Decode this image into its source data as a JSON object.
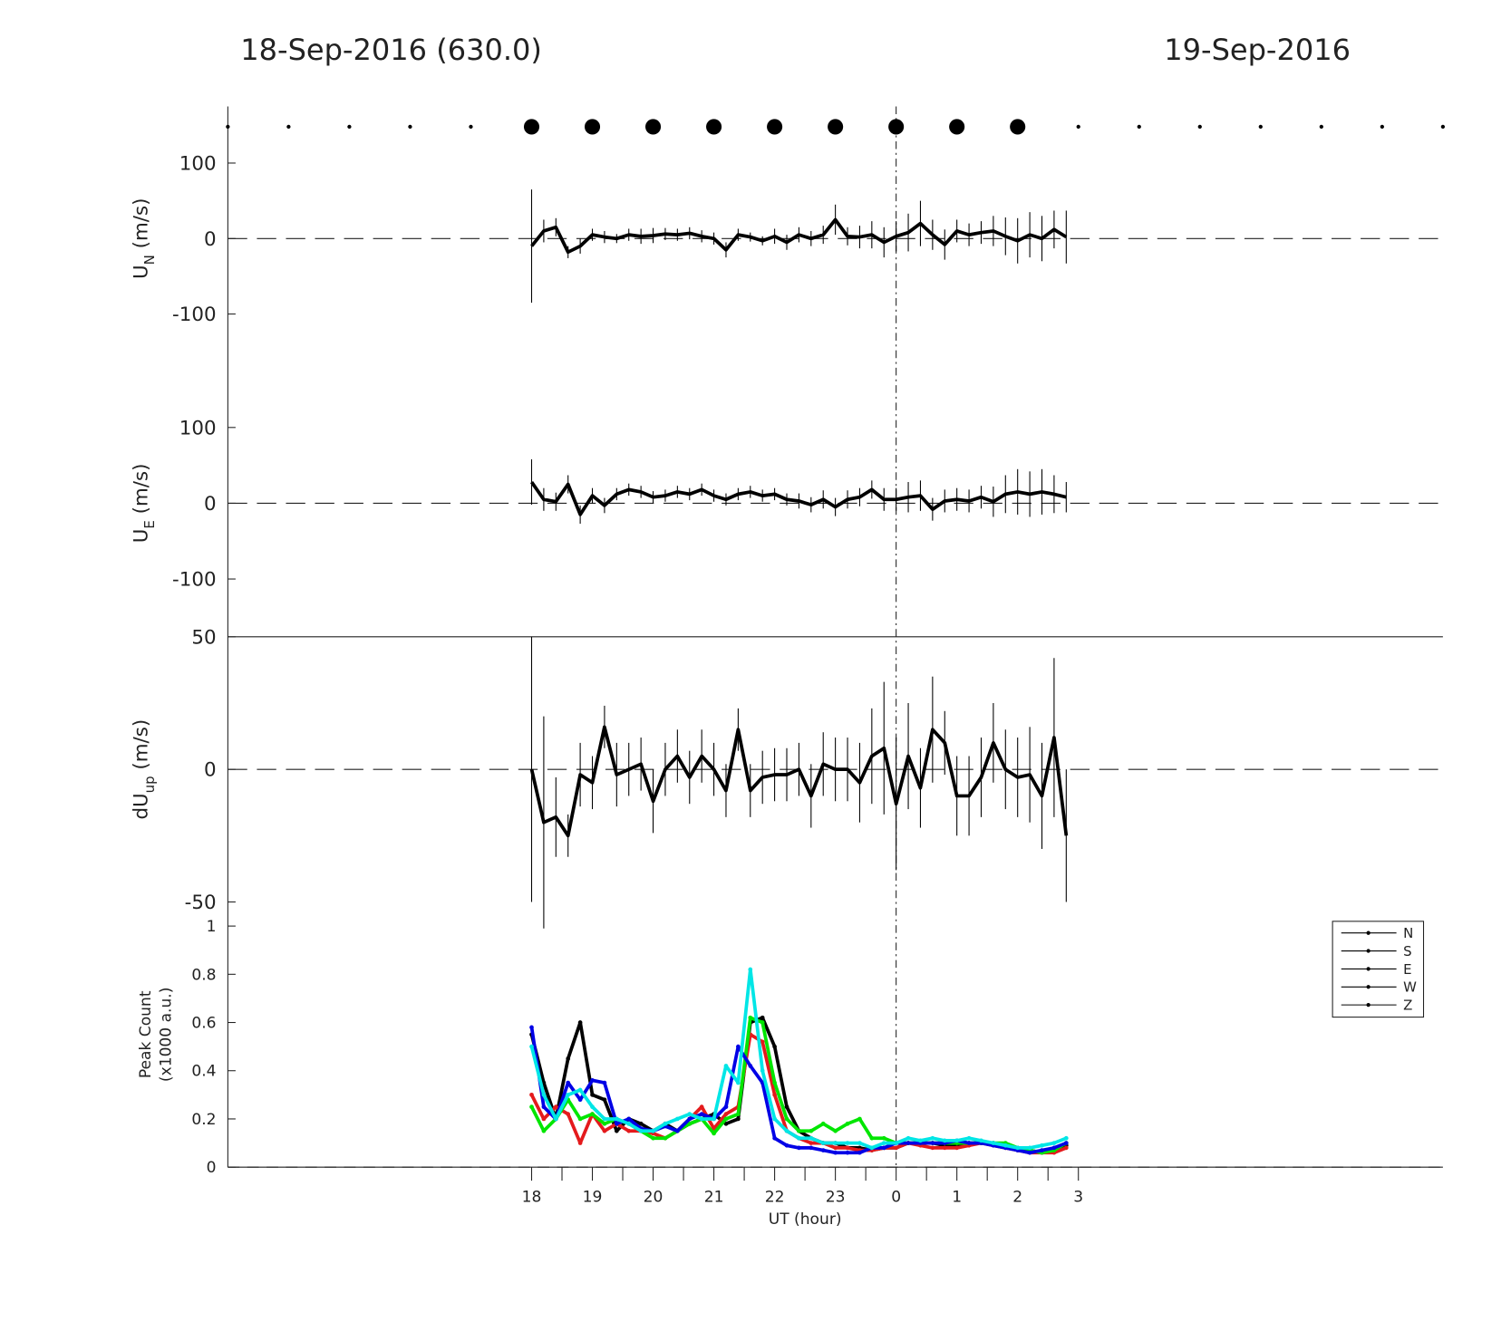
{
  "header": {
    "left": "18-Sep-2016 (630.0)",
    "right": "19-Sep-2016"
  },
  "chart_data": [
    {
      "type": "dots",
      "x": [
        13,
        14,
        15,
        16,
        17,
        18,
        19,
        20,
        21,
        22,
        23,
        24,
        25,
        26,
        27,
        28,
        29,
        30,
        31,
        32,
        33
      ],
      "sizes": [
        2,
        2,
        2,
        2,
        2,
        8,
        8,
        8,
        8,
        8,
        8,
        8,
        8,
        8,
        2,
        2,
        2,
        2,
        2,
        2,
        2
      ],
      "color": "#000000"
    },
    {
      "type": "line",
      "ylabel": [
        "U",
        "N",
        " (m/s)"
      ],
      "ylim": [
        -175,
        175
      ],
      "yticks": [
        -100,
        0,
        100
      ],
      "zero_line": true,
      "color": "#000000",
      "x": [
        18,
        18.2,
        18.4,
        18.6,
        18.8,
        19,
        19.2,
        19.4,
        19.6,
        19.8,
        20,
        20.2,
        20.4,
        20.6,
        20.8,
        21,
        21.2,
        21.4,
        21.6,
        21.8,
        22,
        22.2,
        22.4,
        22.6,
        22.8,
        23,
        23.2,
        23.4,
        23.6,
        23.8,
        24,
        24.2,
        24.4,
        24.6,
        24.8,
        25,
        25.2,
        25.4,
        25.6,
        25.8,
        26,
        26.2,
        26.4,
        26.6,
        26.8
      ],
      "values": [
        -10,
        10,
        15,
        -18,
        -10,
        5,
        2,
        0,
        5,
        3,
        4,
        6,
        5,
        7,
        3,
        0,
        -15,
        5,
        2,
        -3,
        3,
        -5,
        5,
        0,
        5,
        25,
        3,
        2,
        5,
        -5,
        3,
        8,
        20,
        5,
        -8,
        10,
        5,
        8,
        10,
        3,
        -3,
        5,
        0,
        12,
        2
      ],
      "errors": [
        75,
        15,
        12,
        8,
        10,
        8,
        8,
        6,
        8,
        10,
        10,
        8,
        8,
        8,
        8,
        8,
        10,
        8,
        6,
        6,
        10,
        10,
        10,
        10,
        12,
        20,
        12,
        15,
        18,
        20,
        20,
        25,
        30,
        20,
        20,
        15,
        15,
        15,
        20,
        25,
        30,
        30,
        30,
        25,
        35
      ]
    },
    {
      "type": "line",
      "ylabel": [
        "U",
        "E",
        " (m/s)"
      ],
      "ylim": [
        -175,
        175
      ],
      "yticks": [
        -100,
        0,
        100
      ],
      "zero_line": true,
      "color": "#000000",
      "x": [
        18,
        18.2,
        18.4,
        18.6,
        18.8,
        19,
        19.2,
        19.4,
        19.6,
        19.8,
        20,
        20.2,
        20.4,
        20.6,
        20.8,
        21,
        21.2,
        21.4,
        21.6,
        21.8,
        22,
        22.2,
        22.4,
        22.6,
        22.8,
        23,
        23.2,
        23.4,
        23.6,
        23.8,
        24,
        24.2,
        24.4,
        24.6,
        24.8,
        25,
        25.2,
        25.4,
        25.6,
        25.8,
        26,
        26.2,
        26.4,
        26.6,
        26.8
      ],
      "values": [
        28,
        5,
        2,
        25,
        -15,
        10,
        -3,
        12,
        18,
        15,
        8,
        10,
        15,
        12,
        18,
        10,
        5,
        12,
        15,
        10,
        12,
        5,
        3,
        -2,
        5,
        -5,
        5,
        8,
        18,
        5,
        5,
        8,
        10,
        -8,
        3,
        5,
        3,
        8,
        2,
        12,
        15,
        12,
        15,
        12,
        8
      ],
      "errors": [
        30,
        15,
        12,
        12,
        12,
        10,
        10,
        8,
        8,
        8,
        8,
        8,
        8,
        8,
        8,
        8,
        8,
        8,
        8,
        8,
        8,
        8,
        10,
        10,
        12,
        12,
        12,
        12,
        12,
        15,
        15,
        20,
        20,
        15,
        15,
        15,
        15,
        15,
        20,
        25,
        30,
        30,
        30,
        25,
        20
      ]
    },
    {
      "type": "line",
      "ylabel": [
        "dU",
        "up",
        " (m/s)"
      ],
      "ylim": [
        -50,
        50
      ],
      "yticks": [
        -50,
        0,
        50
      ],
      "zero_line": true,
      "color": "#000000",
      "x": [
        18,
        18.2,
        18.4,
        18.6,
        18.8,
        19,
        19.2,
        19.4,
        19.6,
        19.8,
        20,
        20.2,
        20.4,
        20.6,
        20.8,
        21,
        21.2,
        21.4,
        21.6,
        21.8,
        22,
        22.2,
        22.4,
        22.6,
        22.8,
        23,
        23.2,
        23.4,
        23.6,
        23.8,
        24,
        24.2,
        24.4,
        24.6,
        24.8,
        25,
        25.2,
        25.4,
        25.6,
        25.8,
        26,
        26.2,
        26.4,
        26.6,
        26.8
      ],
      "values": [
        0,
        -20,
        -18,
        -25,
        -2,
        -5,
        16,
        -2,
        0,
        2,
        -12,
        0,
        5,
        -3,
        5,
        0,
        -8,
        15,
        -8,
        -3,
        -2,
        -2,
        0,
        -10,
        2,
        0,
        0,
        -5,
        5,
        8,
        -13,
        5,
        -7,
        15,
        10,
        -10,
        -10,
        -3,
        10,
        0,
        -3,
        -2,
        -10,
        12,
        -25
      ],
      "errors": [
        50,
        40,
        15,
        8,
        12,
        10,
        8,
        12,
        10,
        10,
        12,
        10,
        10,
        10,
        10,
        10,
        10,
        8,
        10,
        10,
        10,
        10,
        10,
        12,
        12,
        12,
        12,
        15,
        18,
        25,
        25,
        20,
        15,
        20,
        12,
        15,
        15,
        15,
        15,
        15,
        15,
        18,
        20,
        30,
        25
      ]
    },
    {
      "type": "multiline",
      "ylabel": [
        "Peak Count",
        "(x1000 a.u.)"
      ],
      "xlabel": "UT (hour)",
      "ylim": [
        0,
        1.1
      ],
      "yticks": [
        0,
        0.2,
        0.4,
        0.6,
        0.8,
        1
      ],
      "zero_line": true,
      "xlim": [
        13,
        33
      ],
      "xticks": [
        18,
        19,
        20,
        21,
        22,
        23,
        {
          "value": 24,
          "label": "0"
        },
        {
          "value": 25,
          "label": "1"
        },
        {
          "value": 26,
          "label": "2"
        },
        {
          "value": 27,
          "label": "3"
        }
      ],
      "vline": 24,
      "legend": "northeast",
      "x": [
        18,
        18.2,
        18.4,
        18.6,
        18.8,
        19,
        19.2,
        19.4,
        19.6,
        19.8,
        20,
        20.2,
        20.4,
        20.6,
        20.8,
        21,
        21.2,
        21.4,
        21.6,
        21.8,
        22,
        22.2,
        22.4,
        22.6,
        22.8,
        23,
        23.2,
        23.4,
        23.6,
        23.8,
        24,
        24.2,
        24.4,
        24.6,
        24.8,
        25,
        25.2,
        25.4,
        25.6,
        25.8,
        26,
        26.2,
        26.4,
        26.6,
        26.8
      ],
      "series": [
        {
          "name": "N",
          "color": "#000000",
          "values": [
            0.55,
            0.35,
            0.2,
            0.45,
            0.6,
            0.3,
            0.28,
            0.15,
            0.2,
            0.18,
            0.15,
            0.18,
            0.15,
            0.18,
            0.2,
            0.22,
            0.18,
            0.2,
            0.6,
            0.62,
            0.5,
            0.25,
            0.15,
            0.12,
            0.1,
            0.1,
            0.08,
            0.08,
            0.07,
            0.08,
            0.08,
            0.1,
            0.1,
            0.1,
            0.09,
            0.09,
            0.1,
            0.1,
            0.1,
            0.09,
            0.08,
            0.07,
            0.06,
            0.07,
            0.09
          ]
        },
        {
          "name": "S",
          "color": "#e41a1c",
          "values": [
            0.3,
            0.2,
            0.25,
            0.22,
            0.1,
            0.22,
            0.15,
            0.18,
            0.15,
            0.15,
            0.14,
            0.12,
            0.15,
            0.2,
            0.25,
            0.16,
            0.22,
            0.25,
            0.55,
            0.52,
            0.3,
            0.15,
            0.12,
            0.1,
            0.1,
            0.08,
            0.08,
            0.07,
            0.07,
            0.08,
            0.08,
            0.1,
            0.09,
            0.08,
            0.08,
            0.08,
            0.09,
            0.1,
            0.09,
            0.08,
            0.07,
            0.06,
            0.06,
            0.06,
            0.08
          ]
        },
        {
          "name": "E",
          "color": "#00e600",
          "values": [
            0.25,
            0.15,
            0.2,
            0.28,
            0.2,
            0.22,
            0.18,
            0.2,
            0.18,
            0.15,
            0.12,
            0.12,
            0.15,
            0.18,
            0.2,
            0.14,
            0.2,
            0.22,
            0.62,
            0.6,
            0.35,
            0.2,
            0.15,
            0.15,
            0.18,
            0.15,
            0.18,
            0.2,
            0.12,
            0.12,
            0.1,
            0.1,
            0.1,
            0.1,
            0.1,
            0.1,
            0.1,
            0.1,
            0.1,
            0.1,
            0.08,
            0.07,
            0.06,
            0.07,
            0.1
          ]
        },
        {
          "name": "W",
          "color": "#0000e6",
          "values": [
            0.58,
            0.25,
            0.2,
            0.35,
            0.28,
            0.36,
            0.35,
            0.18,
            0.2,
            0.16,
            0.15,
            0.17,
            0.15,
            0.2,
            0.22,
            0.2,
            0.25,
            0.5,
            0.42,
            0.35,
            0.12,
            0.09,
            0.08,
            0.08,
            0.07,
            0.06,
            0.06,
            0.06,
            0.08,
            0.08,
            0.1,
            0.1,
            0.1,
            0.1,
            0.1,
            0.11,
            0.1,
            0.1,
            0.09,
            0.08,
            0.07,
            0.06,
            0.07,
            0.08,
            0.1
          ]
        },
        {
          "name": "Z",
          "color": "#00e6e6",
          "values": [
            0.5,
            0.3,
            0.2,
            0.3,
            0.32,
            0.25,
            0.2,
            0.2,
            0.18,
            0.15,
            0.15,
            0.18,
            0.2,
            0.22,
            0.2,
            0.2,
            0.42,
            0.35,
            0.82,
            0.4,
            0.2,
            0.15,
            0.12,
            0.12,
            0.1,
            0.1,
            0.1,
            0.1,
            0.08,
            0.1,
            0.1,
            0.12,
            0.11,
            0.12,
            0.11,
            0.11,
            0.12,
            0.11,
            0.1,
            0.09,
            0.08,
            0.08,
            0.09,
            0.1,
            0.12
          ]
        }
      ]
    }
  ]
}
